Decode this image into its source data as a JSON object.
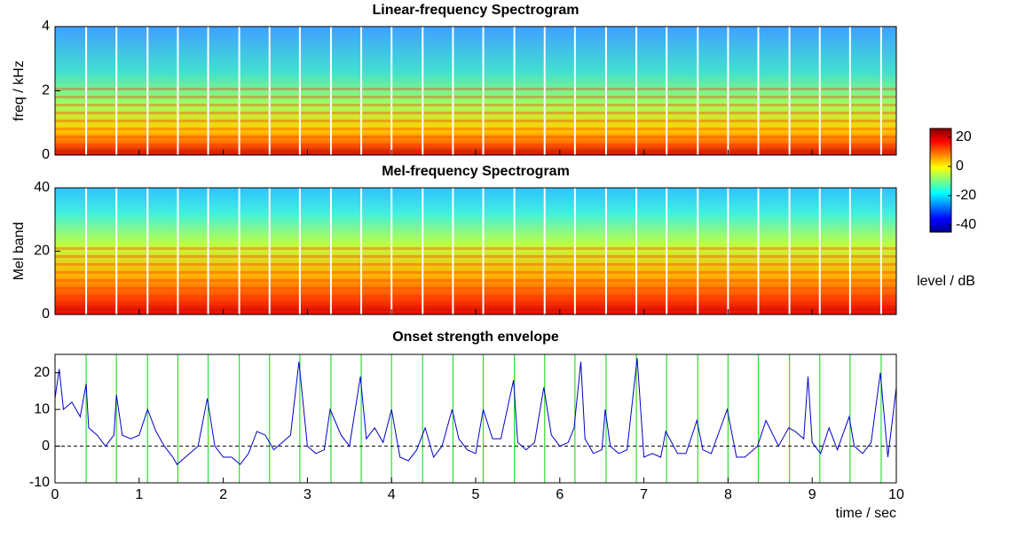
{
  "chart_data": [
    {
      "type": "heatmap",
      "title": "Linear-frequency Spectrogram",
      "y_label": "freq / kHz",
      "ylim": [
        0,
        4
      ],
      "yticks": [
        0,
        2,
        4
      ]
    },
    {
      "type": "heatmap",
      "title": "Mel-frequency Spectrogram",
      "y_label": "Mel band",
      "ylim": [
        0,
        40
      ],
      "yticks": [
        0,
        20,
        40
      ],
      "colorbar": {
        "label": "level / dB",
        "clim": [
          -45,
          26
        ],
        "ticks": [
          20,
          0,
          -20,
          -40
        ]
      }
    },
    {
      "type": "line",
      "title": "Onset strength envelope",
      "x_label": "time / sec",
      "xlim": [
        0,
        10
      ],
      "xticks": [
        0,
        1,
        2,
        3,
        4,
        5,
        6,
        7,
        8,
        9,
        10
      ],
      "ylim": [
        -10,
        25
      ],
      "yticks": [
        -10,
        0,
        10,
        20
      ],
      "hline": 0,
      "beats": [
        0.37,
        0.73,
        1.1,
        1.46,
        1.82,
        2.19,
        2.55,
        2.91,
        3.28,
        3.64,
        4.0,
        4.37,
        4.73,
        5.09,
        5.46,
        5.82,
        6.18,
        6.55,
        6.91,
        7.27,
        7.64,
        8.0,
        8.36,
        8.73,
        9.09,
        9.45,
        9.82
      ],
      "beat_color": "#33dd33",
      "series": [
        {
          "color": "#0000cc",
          "x": [
            0.0,
            0.05,
            0.1,
            0.2,
            0.3,
            0.37,
            0.4,
            0.5,
            0.6,
            0.7,
            0.73,
            0.8,
            0.9,
            1.0,
            1.1,
            1.2,
            1.3,
            1.4,
            1.45,
            1.5,
            1.6,
            1.7,
            1.81,
            1.9,
            2.0,
            2.1,
            2.2,
            2.3,
            2.4,
            2.5,
            2.6,
            2.7,
            2.8,
            2.9,
            3.0,
            3.1,
            3.2,
            3.27,
            3.4,
            3.5,
            3.63,
            3.7,
            3.8,
            3.9,
            4.0,
            4.1,
            4.2,
            4.3,
            4.4,
            4.5,
            4.6,
            4.72,
            4.8,
            4.9,
            5.0,
            5.09,
            5.2,
            5.3,
            5.45,
            5.5,
            5.6,
            5.7,
            5.81,
            5.9,
            6.0,
            6.1,
            6.17,
            6.25,
            6.3,
            6.4,
            6.5,
            6.54,
            6.6,
            6.7,
            6.8,
            6.92,
            7.0,
            7.1,
            7.2,
            7.26,
            7.4,
            7.5,
            7.63,
            7.7,
            7.8,
            7.99,
            8.1,
            8.2,
            8.35,
            8.45,
            8.6,
            8.72,
            8.8,
            8.9,
            8.95,
            9.0,
            9.1,
            9.2,
            9.3,
            9.44,
            9.5,
            9.6,
            9.7,
            9.81,
            9.9,
            10.0
          ],
          "values": [
            13,
            21,
            10,
            12,
            8,
            17,
            5,
            3,
            0,
            3,
            14,
            3,
            2,
            3,
            10,
            4,
            0,
            -3,
            -5,
            -4,
            -2,
            0,
            13,
            0,
            -3,
            -3,
            -5,
            -2,
            4,
            3,
            -1,
            1,
            3,
            23,
            0,
            -2,
            -1,
            10,
            3,
            0,
            19,
            2,
            5,
            1,
            10,
            -3,
            -4,
            -1,
            5,
            -3,
            0,
            10,
            2,
            -1,
            -2,
            10,
            2,
            2,
            18,
            1,
            -1,
            1,
            16,
            3,
            0,
            1,
            5,
            23,
            2,
            -2,
            -1,
            10,
            0,
            -2,
            -1,
            24,
            -3,
            -2,
            -3,
            4,
            -2,
            -2,
            7,
            -1,
            -2,
            10,
            -3,
            -3,
            0,
            7,
            0,
            5,
            4,
            2,
            19,
            1,
            -2,
            5,
            -1,
            8,
            0,
            -2,
            1,
            20,
            -3,
            16
          ]
        }
      ]
    }
  ]
}
